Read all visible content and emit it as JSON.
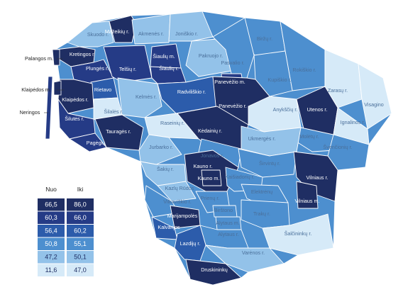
{
  "palette": [
    "#1f2e63",
    "#253b86",
    "#2c5cab",
    "#4d8fcf",
    "#93c2e9",
    "#d6eaf8"
  ],
  "legend": {
    "col_from": "Nuo",
    "col_to": "Iki",
    "rows": [
      {
        "from": "66,5",
        "to": "86,0",
        "color": "#1f2e63"
      },
      {
        "from": "60,3",
        "to": "66,0",
        "color": "#253b86"
      },
      {
        "from": "56,4",
        "to": "60,2",
        "color": "#2c5cab"
      },
      {
        "from": "50,8",
        "to": "55,1",
        "color": "#4d8fcf"
      },
      {
        "from": "47,2",
        "to": "50,1",
        "color": "#93c2e9"
      },
      {
        "from": "11,6",
        "to": "47,0",
        "color": "#d6eaf8"
      }
    ]
  },
  "outside_labels": [
    {
      "name": "Palangos m.",
      "tier": 0
    },
    {
      "name": "Klaipėdos m.",
      "tier": 0
    },
    {
      "name": "Neringos",
      "tier": 1
    }
  ],
  "regions": [
    {
      "name": "Skuodo r.",
      "tier": 4
    },
    {
      "name": "Mažeikių r.",
      "tier": 0
    },
    {
      "name": "Akmenės r.",
      "tier": 4
    },
    {
      "name": "Joniškio r.",
      "tier": 4
    },
    {
      "name": "Biržų r.",
      "tier": 3
    },
    {
      "name": "Kretingos r.",
      "tier": 0
    },
    {
      "name": "Plungės r.",
      "tier": 1
    },
    {
      "name": "Telšių r.",
      "tier": 1
    },
    {
      "name": "Šiaulių m.",
      "tier": 1
    },
    {
      "name": "Šiaulių r.",
      "tier": 1
    },
    {
      "name": "Pakruojo r.",
      "tier": 4
    },
    {
      "name": "Pasvalio r.",
      "tier": 3
    },
    {
      "name": "Rokiškio r.",
      "tier": 3
    },
    {
      "name": "Rietavo",
      "tier": 2
    },
    {
      "name": "Radviliškio r.",
      "tier": 2
    },
    {
      "name": "Panevėžio m.",
      "tier": 1
    },
    {
      "name": "Kupiškio r.",
      "tier": 3
    },
    {
      "name": "Klaipėdos r.",
      "tier": 0
    },
    {
      "name": "Kelmės r.",
      "tier": 4
    },
    {
      "name": "Panevėžio r.",
      "tier": 0
    },
    {
      "name": "Zarasų r.",
      "tier": 5
    },
    {
      "name": "Šilalės r.",
      "tier": 5
    },
    {
      "name": "Anykščių r.",
      "tier": 5
    },
    {
      "name": "Utenos r.",
      "tier": 0
    },
    {
      "name": "Visagino",
      "tier": 5
    },
    {
      "name": "Šilutės r.",
      "tier": 1
    },
    {
      "name": "Tauragės r.",
      "tier": 0
    },
    {
      "name": "Raseinių r.",
      "tier": 5
    },
    {
      "name": "Kėdainių r.",
      "tier": 0
    },
    {
      "name": "Ignalinos r.",
      "tier": 5
    },
    {
      "name": "Pagėgių",
      "tier": 1
    },
    {
      "name": "Molėtų r.",
      "tier": 3
    },
    {
      "name": "Jurbarko r.",
      "tier": 4
    },
    {
      "name": "Ukmergės r.",
      "tier": 4
    },
    {
      "name": "Švenčionių r.",
      "tier": 3
    },
    {
      "name": "Jonavos r.",
      "tier": 3
    },
    {
      "name": "Šakių r.",
      "tier": 4
    },
    {
      "name": "Kauno r.",
      "tier": 0
    },
    {
      "name": "Širvintų r.",
      "tier": 3
    },
    {
      "name": "Kauno m.",
      "tier": 0
    },
    {
      "name": "Kaišiadorių r.",
      "tier": 3
    },
    {
      "name": "Vilniaus r.",
      "tier": 0
    },
    {
      "name": "Kazlų Rūdos",
      "tier": 4
    },
    {
      "name": "Vilniaus m.",
      "tier": 0
    },
    {
      "name": "Elektrėnų",
      "tier": 3
    },
    {
      "name": "Vilkaviškio r.",
      "tier": 3
    },
    {
      "name": "Prienų r.",
      "tier": 3
    },
    {
      "name": "Marijampolės",
      "tier": 0
    },
    {
      "name": "Birštono",
      "tier": 3
    },
    {
      "name": "Trakų r.",
      "tier": 3
    },
    {
      "name": "Kalvarijos",
      "tier": 2
    },
    {
      "name": "Alytaus m.",
      "tier": 3
    },
    {
      "name": "Alytaus r.",
      "tier": 3
    },
    {
      "name": "Šalčininkų r.",
      "tier": 5
    },
    {
      "name": "Lazdijų r.",
      "tier": 2
    },
    {
      "name": "Varėnos r.",
      "tier": 4
    },
    {
      "name": "Druskininkų",
      "tier": 0
    }
  ]
}
